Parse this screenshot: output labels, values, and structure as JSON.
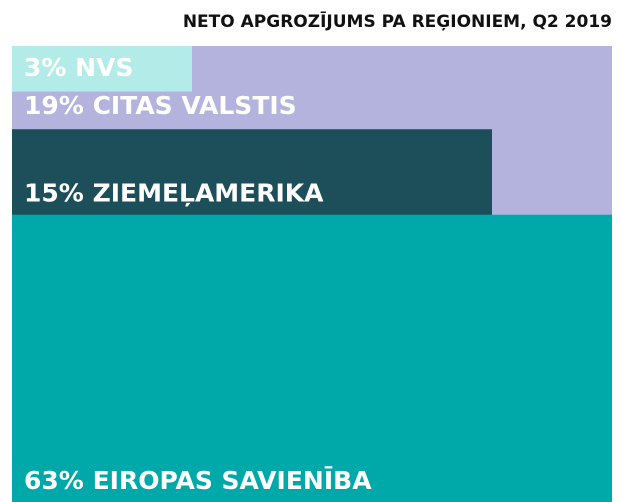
{
  "chart_data": {
    "type": "nested",
    "title": "NETO APGROZĪJUMS PA REĢIONIEM, Q2 2019",
    "categories": [
      "NVS",
      "CITAS VALSTIS",
      "ZIEMEĻAMERIKA",
      "EIROPAS SAVIENĪBA"
    ],
    "values": [
      3,
      19,
      15,
      63
    ],
    "value_labels": [
      "3%",
      "19%",
      "15%",
      "63%"
    ],
    "colors": [
      "#b2ebe7",
      "#b3b3dd",
      "#1d4f5b",
      "#00a9a9"
    ]
  }
}
